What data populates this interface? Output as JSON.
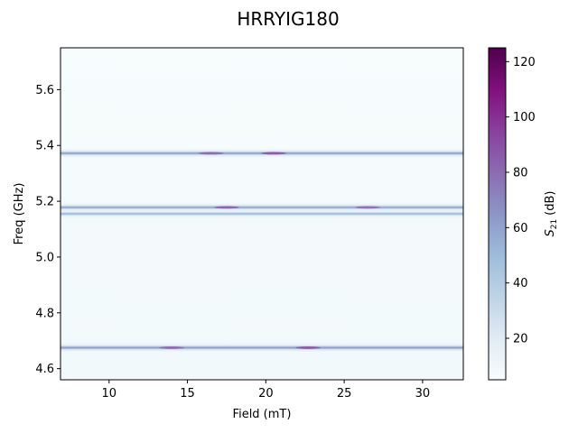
{
  "chart_data": {
    "type": "heatmap",
    "title": "HRRYIG180",
    "xlabel": "Field (mT)",
    "ylabel": "Freq (GHz)",
    "colorbar_label": "S21 (dB)",
    "colorbar_label_main": "S",
    "colorbar_label_sub": "21",
    "colorbar_label_unit": "(dB)",
    "colormap": "BuPu",
    "xlim": [
      6.9,
      32.6
    ],
    "ylim": [
      4.56,
      5.75
    ],
    "clim": [
      5,
      125
    ],
    "x_ticks": [
      10,
      15,
      20,
      25,
      30
    ],
    "y_ticks": [
      4.6,
      4.8,
      5.0,
      5.2,
      5.4,
      5.6
    ],
    "y_tick_labels": [
      "4.6",
      "4.8",
      "5.0",
      "5.2",
      "5.4",
      "5.6"
    ],
    "colorbar_ticks": [
      20,
      40,
      60,
      80,
      100,
      120
    ],
    "background_value": 8,
    "resonance_bands": [
      {
        "freq": 4.675,
        "peak_value": 62,
        "hot_spots": [
          {
            "field": 14.0,
            "value": 85
          },
          {
            "field": 22.7,
            "value": 92
          }
        ]
      },
      {
        "freq": 5.155,
        "peak_value": 50,
        "hot_spots": []
      },
      {
        "freq": 5.178,
        "peak_value": 58,
        "hot_spots": [
          {
            "field": 17.5,
            "value": 88
          },
          {
            "field": 26.5,
            "value": 82
          }
        ]
      },
      {
        "freq": 5.372,
        "peak_value": 60,
        "hot_spots": [
          {
            "field": 16.5,
            "value": 85
          },
          {
            "field": 20.5,
            "value": 92
          }
        ]
      }
    ]
  }
}
